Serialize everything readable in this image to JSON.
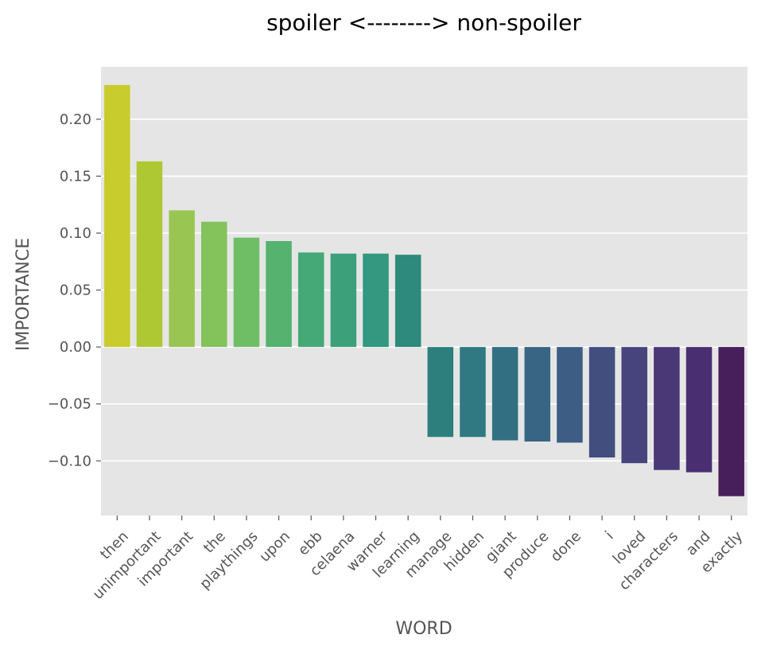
{
  "chart_data": {
    "type": "bar",
    "title": "spoiler <--------> non-spoiler",
    "xlabel": "WORD",
    "ylabel": "IMPORTANCE",
    "categories": [
      "then",
      "unimportant",
      "important",
      "the",
      "playthings",
      "upon",
      "ebb",
      "celaena",
      "warner",
      "learning",
      "manage",
      "hidden",
      "giant",
      "produce",
      "done",
      "i",
      "loved",
      "characters",
      "and",
      "exactly"
    ],
    "values": [
      0.23,
      0.163,
      0.12,
      0.11,
      0.096,
      0.093,
      0.083,
      0.082,
      0.082,
      0.081,
      -0.079,
      -0.079,
      -0.082,
      -0.083,
      -0.084,
      -0.097,
      -0.102,
      -0.108,
      -0.11,
      -0.131
    ],
    "colors": [
      "#c8cc2c",
      "#adc832",
      "#99c653",
      "#84c25c",
      "#6fbe66",
      "#55b26f",
      "#45a877",
      "#3ca07b",
      "#33987f",
      "#2d8a7c",
      "#2d7f7e",
      "#307882",
      "#336f83",
      "#386584",
      "#3d5d84",
      "#424e7e",
      "#47437c",
      "#4a3876",
      "#492f72",
      "#471f5a"
    ],
    "yticks": [
      -0.1,
      -0.05,
      0.0,
      0.05,
      0.1,
      0.15,
      0.2
    ],
    "ytick_labels": [
      "−0.10",
      "−0.05",
      "0.00",
      "0.05",
      "0.10",
      "0.15",
      "0.20"
    ],
    "ylim": [
      -0.148,
      0.246
    ],
    "grid": true,
    "background": "#e5e5e5",
    "grid_color": "#ffffff"
  }
}
